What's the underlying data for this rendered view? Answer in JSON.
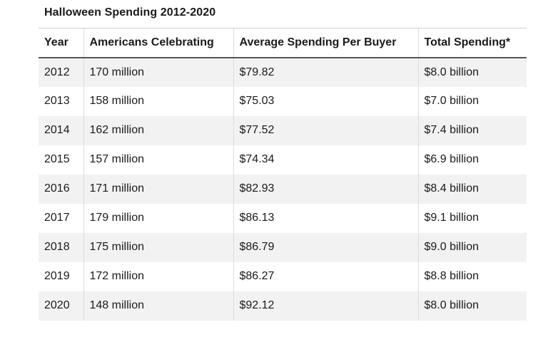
{
  "chart_data": {
    "type": "table",
    "title": "Halloween Spending 2012-2020",
    "columns": [
      "Year",
      "Americans Celebrating",
      "Average Spending Per Buyer",
      "Total Spending*"
    ],
    "rows": [
      [
        "2012",
        "170 million",
        "$79.82",
        "$8.0 billion"
      ],
      [
        "2013",
        "158 million",
        "$75.03",
        "$7.0 billion"
      ],
      [
        "2014",
        "162 million",
        "$77.52",
        "$7.4 billion"
      ],
      [
        "2015",
        "157 million",
        "$74.34",
        "$6.9 billion"
      ],
      [
        "2016",
        "171 million",
        "$82.93",
        "$8.4 billion"
      ],
      [
        "2017",
        "179 million",
        "$86.13",
        "$9.1 billion"
      ],
      [
        "2018",
        "175 million",
        "$86.79",
        "$9.0 billion"
      ],
      [
        "2019",
        "172 million",
        "$86.27",
        "$8.8 billion"
      ],
      [
        "2020",
        "148 million",
        "$92.12",
        "$8.0 billion"
      ]
    ]
  },
  "colors": {
    "stripe": "#f2f2f2",
    "header_rule": "#555555",
    "divider": "#dcdcdc"
  }
}
